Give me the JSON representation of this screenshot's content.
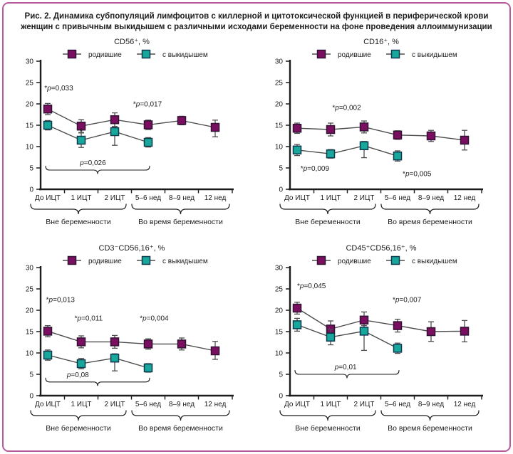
{
  "caption": "Рис. 2. Динамика субпопуляций лимфоцитов с киллерной и цитотоксической функцией в периферической крови женщин с привычным выкидышем с различными исходами беременности на фоне проведения аллоиммунизации",
  "colors": {
    "born": "#7a0e60",
    "born_stroke": "#301333",
    "miscarriage": "#17a79b",
    "miscarriage_stroke": "#10394f",
    "line": "#4d4d4d",
    "error_bar": "#4d4d4d",
    "axis": "#1c1c1c",
    "text": "#1c1c1c",
    "frame": "#b55b9d"
  },
  "legend": [
    "родившие",
    "с выкидышем"
  ],
  "categories": [
    "До ИЦТ",
    "1 ИЦТ",
    "2 ИЦТ",
    "5–6 нед",
    "8–9 нед",
    "12 нед"
  ],
  "group_labels": [
    "Вне беременности",
    "Во время беременности"
  ],
  "ylim": [
    0,
    30
  ],
  "ytick_step": 5,
  "chart_data": [
    {
      "id": "chart-cd56",
      "type": "line",
      "title": "CD56⁺, %",
      "series": [
        {
          "name": "родившие",
          "key": "born",
          "values": [
            18.8,
            14.8,
            16.3,
            15.1,
            16.1,
            14.5
          ],
          "err": [
            1.3,
            1.5,
            1.6,
            1.1,
            1.0,
            [
              2.2,
              1.7
            ]
          ]
        },
        {
          "name": "с выкидышем",
          "key": "miscarriage",
          "values": [
            15.0,
            11.5,
            13.5,
            11.0,
            null,
            null
          ],
          "err": [
            1.1,
            1.7,
            [
              3.2,
              1.0
            ],
            1.1,
            null,
            null
          ]
        }
      ],
      "annotations": [
        {
          "text": "*p=0,033",
          "x": -0.1,
          "y": 23.2
        },
        {
          "text": "*p=0,017",
          "x": 2.55,
          "y": 19.4
        }
      ],
      "point_marks": [
        {
          "text": "*",
          "x": 1,
          "y": 12.8
        }
      ],
      "bracket": {
        "text": "p=0,026",
        "from": 0,
        "to": 3,
        "y": 4.5,
        "text_x": 1.35
      }
    },
    {
      "id": "chart-cd16",
      "type": "line",
      "title": "CD16⁺, %",
      "series": [
        {
          "name": "родившие",
          "key": "born",
          "values": [
            14.3,
            14.0,
            14.6,
            12.7,
            12.5,
            11.5
          ],
          "err": [
            1.2,
            1.5,
            1.4,
            1.0,
            1.3,
            2.3
          ]
        },
        {
          "name": "с выкидышем",
          "key": "miscarriage",
          "values": [
            9.2,
            8.3,
            10.2,
            7.8,
            null,
            null
          ],
          "err": [
            1.3,
            1.0,
            [
              2.8,
              1.0
            ],
            1.2,
            null,
            null
          ]
        }
      ],
      "annotations": [
        {
          "text": "*p=0,002",
          "x": 1.05,
          "y": 18.6
        },
        {
          "text": "*p=0,009",
          "x": 0.1,
          "y": 4.3
        },
        {
          "text": "*p=0,005",
          "x": 3.15,
          "y": 3.1
        }
      ],
      "point_marks": [],
      "bracket": null
    },
    {
      "id": "chart-cd3-cd56-16",
      "type": "line",
      "title": "CD3⁻CD56,16⁺, %",
      "series": [
        {
          "name": "родившие",
          "key": "born",
          "values": [
            15.1,
            12.6,
            12.6,
            12.1,
            12.1,
            10.5
          ],
          "err": [
            1.3,
            1.4,
            1.5,
            1.2,
            1.4,
            [
              2.0,
              2.2
            ]
          ]
        },
        {
          "name": "с выкидышем",
          "key": "miscarriage",
          "values": [
            9.5,
            7.5,
            8.8,
            6.5,
            null,
            null
          ],
          "err": [
            1.2,
            1.2,
            [
              3.0,
              1.0
            ],
            1.0,
            null,
            null
          ]
        }
      ],
      "annotations": [
        {
          "text": "*p=0,013",
          "x": -0.05,
          "y": 21.9
        },
        {
          "text": "*p=0,011",
          "x": 0.8,
          "y": 17.6
        },
        {
          "text": "*p=0,004",
          "x": 2.75,
          "y": 17.6
        }
      ],
      "point_marks": [],
      "bracket": {
        "text": "p=0,08",
        "from": 0,
        "to": 3,
        "y": 3.2,
        "text_x": 0.9
      }
    },
    {
      "id": "chart-cd45-cd56-16",
      "type": "line",
      "title": "CD45⁺CD56,16⁺, %",
      "series": [
        {
          "name": "родившие",
          "key": "born",
          "values": [
            20.5,
            15.6,
            17.7,
            16.4,
            15.0,
            15.1
          ],
          "err": [
            1.4,
            1.9,
            1.9,
            1.5,
            2.3,
            2.5
          ]
        },
        {
          "name": "с выкидышем",
          "key": "miscarriage",
          "values": [
            16.6,
            13.7,
            15.1,
            11.1,
            null,
            null
          ],
          "err": [
            1.5,
            1.8,
            [
              4.5,
              1.3
            ],
            1.2,
            null,
            null
          ]
        }
      ],
      "annotations": [
        {
          "text": "*p=0,045",
          "x": 0.0,
          "y": 25.2
        },
        {
          "text": "*p=0,007",
          "x": 2.85,
          "y": 21.9
        }
      ],
      "point_marks": [],
      "bracket": {
        "text": "p=0,01",
        "from": 0,
        "to": 3,
        "y": 5.0,
        "text_x": 1.45
      }
    }
  ]
}
